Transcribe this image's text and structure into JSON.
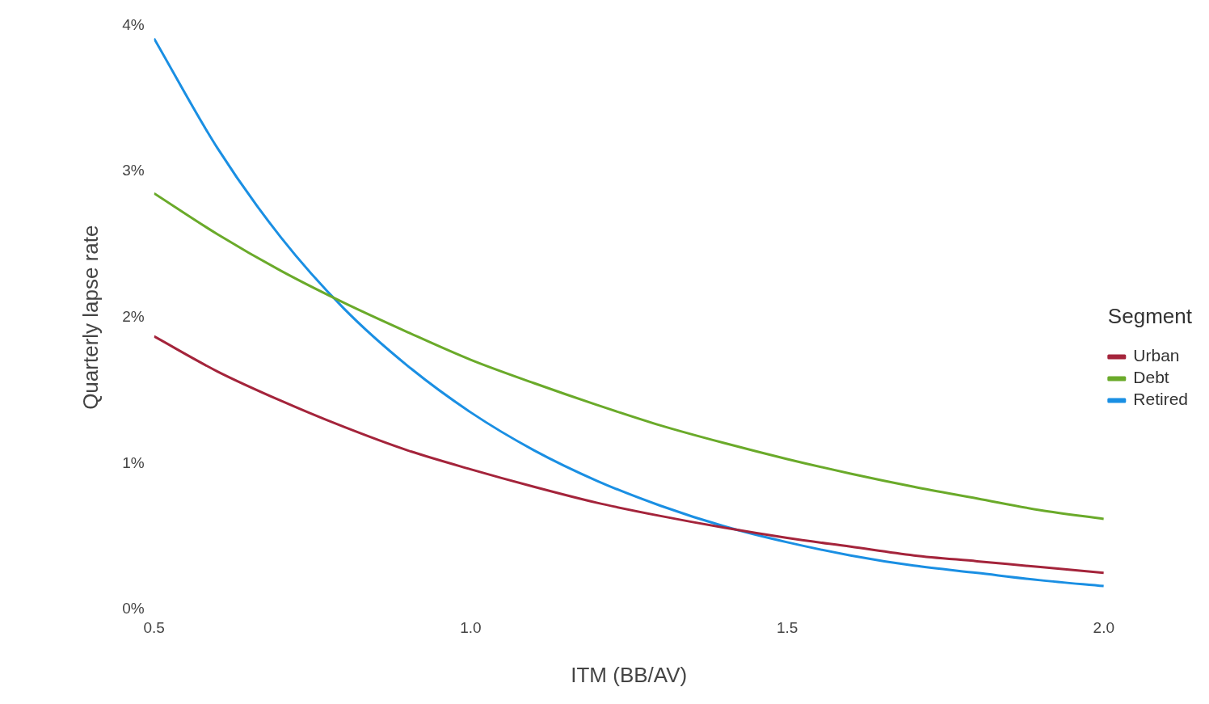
{
  "chart_data": {
    "type": "line",
    "xlabel": "ITM (BB/AV)",
    "ylabel": "Quarterly lapse rate",
    "legend_title": "Segment",
    "legend": "right",
    "grid": false,
    "marker": "none",
    "line_style": "solid",
    "x": [
      0.5,
      0.6,
      0.7,
      0.8,
      0.9,
      1.0,
      1.1,
      1.2,
      1.3,
      1.4,
      1.5,
      1.6,
      1.7,
      1.8,
      1.9,
      2.0
    ],
    "xlim": [
      0.5,
      2.0
    ],
    "xticks": [
      0.5,
      {
        "value": 1,
        "label": "1.0"
      },
      1.5,
      {
        "value": 2,
        "label": "2.0"
      }
    ],
    "ylim": [
      0,
      4
    ],
    "yticks": [
      {
        "value": 0,
        "label": "0%"
      },
      {
        "value": 1,
        "label": "1%"
      },
      {
        "value": 2,
        "label": "2%"
      },
      {
        "value": 3,
        "label": "3%"
      },
      {
        "value": 4,
        "label": "4%"
      }
    ],
    "series": [
      {
        "name": "Urban",
        "color": "#a4243b",
        "values": [
          1.87,
          1.63,
          1.43,
          1.25,
          1.09,
          0.96,
          0.84,
          0.73,
          0.64,
          0.56,
          0.49,
          0.43,
          0.37,
          0.33,
          0.29,
          0.25
        ]
      },
      {
        "name": "Debt",
        "color": "#6aaa2a",
        "values": [
          2.85,
          2.57,
          2.32,
          2.1,
          1.9,
          1.71,
          1.55,
          1.4,
          1.26,
          1.14,
          1.03,
          0.93,
          0.84,
          0.76,
          0.68,
          0.62
        ]
      },
      {
        "name": "Retired",
        "color": "#1a8fe3",
        "values": [
          3.91,
          3.16,
          2.55,
          2.06,
          1.67,
          1.35,
          1.09,
          0.88,
          0.71,
          0.57,
          0.46,
          0.37,
          0.3,
          0.25,
          0.2,
          0.16
        ]
      }
    ]
  }
}
